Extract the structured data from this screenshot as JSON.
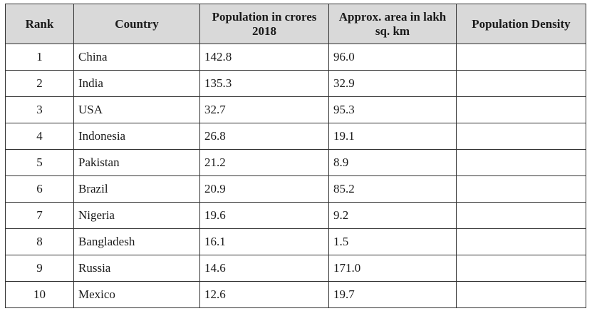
{
  "table": {
    "header": [
      "Rank",
      "Country",
      "Population in crores 2018",
      "Approx. area in lakh sq. km",
      "Population Density"
    ],
    "rows": [
      [
        "1",
        "China",
        "142.8",
        "96.0"
      ],
      [
        "2",
        "India",
        "135.3",
        "32.9"
      ],
      [
        "3",
        "USA",
        "32.7",
        "95.3"
      ],
      [
        "4",
        "Indonesia",
        "26.8",
        "19.1"
      ],
      [
        "5",
        "Pakistan",
        "21.2",
        "8.9"
      ],
      [
        "6",
        "Brazil",
        "20.9",
        "85.2"
      ],
      [
        "7",
        "Nigeria",
        "19.6",
        "9.2"
      ],
      [
        "8",
        "Bangladesh",
        "16.1",
        "1.5"
      ],
      [
        "9",
        "Russia",
        "14.6",
        "171.0"
      ],
      [
        "10",
        "Mexico",
        "12.6",
        "19.7"
      ]
    ]
  }
}
